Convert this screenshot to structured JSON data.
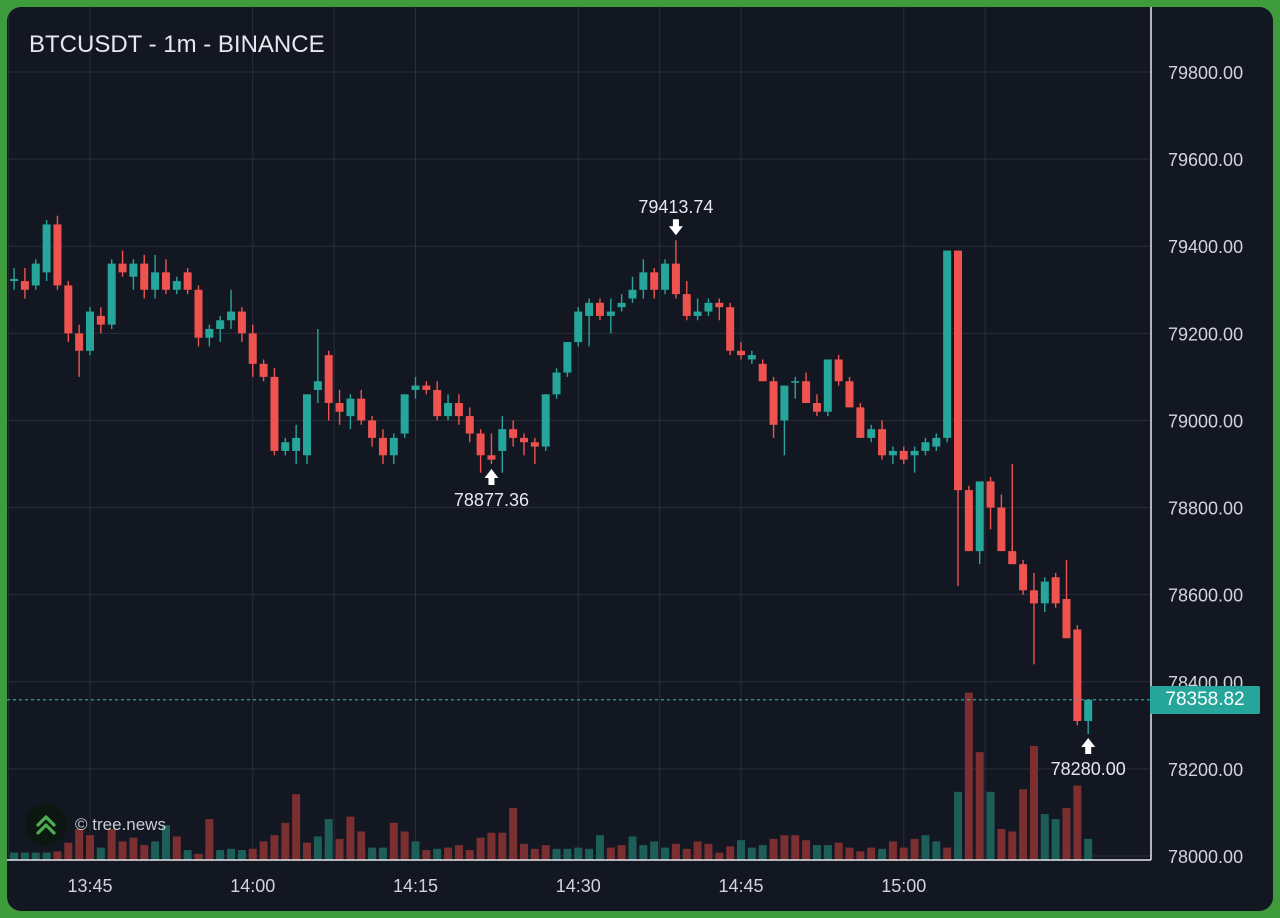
{
  "title": "BTCUSDT - 1m - BINANCE",
  "watermark": "© tree.news",
  "current_price": "78358.82",
  "annotations": {
    "high_label": "79413.74",
    "low_left_label": "78877.36",
    "low_right_label": "78280.00"
  },
  "colors": {
    "up": "#26a69a",
    "down": "#ef5350",
    "background": "#131722",
    "grid": "#2a2e39",
    "frame": "#3f9c3c"
  },
  "chart_data": {
    "type": "candlestick",
    "title": "BTCUSDT - 1m - BINANCE",
    "interval_minutes": 1,
    "start_time": "13:45",
    "first_candle_index": -7,
    "y_range": [
      78000,
      79940
    ],
    "y_ticks": [
      "79800.00",
      "79600.00",
      "79400.00",
      "79200.00",
      "79000.00",
      "78800.00",
      "78600.00",
      "78400.00",
      "78200.00",
      "78000.00"
    ],
    "x_ticks": [
      "13:45",
      "14:00",
      "14:15",
      "14:30",
      "14:45",
      "15:00"
    ],
    "grid": true,
    "last_price": 78358.82,
    "candles": [
      [
        79320,
        79350,
        79300,
        79325
      ],
      [
        79320,
        79350,
        79280,
        79300
      ],
      [
        79310,
        79370,
        79300,
        79360
      ],
      [
        79340,
        79460,
        79320,
        79450
      ],
      [
        79450,
        79470,
        79300,
        79310
      ],
      [
        79310,
        79320,
        79180,
        79200
      ],
      [
        79200,
        79220,
        79100,
        79160
      ],
      [
        79160,
        79260,
        79150,
        79250
      ],
      [
        79240,
        79260,
        79200,
        79220
      ],
      [
        79220,
        79370,
        79210,
        79360
      ],
      [
        79360,
        79390,
        79330,
        79340
      ],
      [
        79330,
        79370,
        79300,
        79360
      ],
      [
        79360,
        79380,
        79280,
        79300
      ],
      [
        79300,
        79380,
        79280,
        79340
      ],
      [
        79340,
        79370,
        79290,
        79300
      ],
      [
        79300,
        79330,
        79290,
        79320
      ],
      [
        79340,
        79350,
        79290,
        79300
      ],
      [
        79300,
        79310,
        79170,
        79190
      ],
      [
        79190,
        79220,
        79170,
        79210
      ],
      [
        79210,
        79240,
        79180,
        79230
      ],
      [
        79230,
        79300,
        79210,
        79250
      ],
      [
        79250,
        79260,
        79180,
        79200
      ],
      [
        79200,
        79220,
        79100,
        79130
      ],
      [
        79130,
        79140,
        79090,
        79100
      ],
      [
        79100,
        79120,
        78920,
        78930
      ],
      [
        78930,
        78960,
        78920,
        78950
      ],
      [
        78930,
        78990,
        78900,
        78960
      ],
      [
        78920,
        79060,
        78900,
        79060
      ],
      [
        79070,
        79210,
        79040,
        79090
      ],
      [
        79150,
        79160,
        79000,
        79040
      ],
      [
        79040,
        79070,
        78990,
        79020
      ],
      [
        79010,
        79060,
        78980,
        79050
      ],
      [
        79050,
        79070,
        78990,
        79000
      ],
      [
        79000,
        79010,
        78940,
        78960
      ],
      [
        78960,
        78980,
        78900,
        78920
      ],
      [
        78920,
        78970,
        78900,
        78960
      ],
      [
        78970,
        79060,
        78960,
        79060
      ],
      [
        79070,
        79100,
        79050,
        79080
      ],
      [
        79080,
        79090,
        79060,
        79070
      ],
      [
        79070,
        79090,
        79000,
        79010
      ],
      [
        79010,
        79060,
        79000,
        79040
      ],
      [
        79040,
        79060,
        78990,
        79010
      ],
      [
        79010,
        79030,
        78950,
        78970
      ],
      [
        78970,
        78980,
        78880,
        78920
      ],
      [
        78920,
        78970,
        78900,
        78910
      ],
      [
        78930,
        79010,
        78880,
        78980
      ],
      [
        78980,
        79000,
        78940,
        78960
      ],
      [
        78960,
        78970,
        78920,
        78950
      ],
      [
        78950,
        78960,
        78900,
        78940
      ],
      [
        78940,
        79060,
        78930,
        79060
      ],
      [
        79060,
        79120,
        79050,
        79110
      ],
      [
        79110,
        79180,
        79100,
        79180
      ],
      [
        79180,
        79260,
        79170,
        79250
      ],
      [
        79240,
        79280,
        79170,
        79270
      ],
      [
        79270,
        79280,
        79230,
        79240
      ],
      [
        79240,
        79280,
        79200,
        79250
      ],
      [
        79260,
        79290,
        79250,
        79270
      ],
      [
        79280,
        79330,
        79270,
        79300
      ],
      [
        79300,
        79370,
        79280,
        79340
      ],
      [
        79340,
        79350,
        79280,
        79300
      ],
      [
        79300,
        79370,
        79290,
        79360
      ],
      [
        79360,
        79413.74,
        79280,
        79290
      ],
      [
        79290,
        79320,
        79230,
        79240
      ],
      [
        79240,
        79280,
        79230,
        79250
      ],
      [
        79250,
        79280,
        79240,
        79270
      ],
      [
        79270,
        79280,
        79230,
        79260
      ],
      [
        79260,
        79270,
        79150,
        79160
      ],
      [
        79160,
        79180,
        79140,
        79150
      ],
      [
        79140,
        79160,
        79130,
        79150
      ],
      [
        79130,
        79140,
        79090,
        79090
      ],
      [
        79090,
        79100,
        78960,
        78990
      ],
      [
        79000,
        79080,
        78920,
        79080
      ],
      [
        79090,
        79100,
        79050,
        79090
      ],
      [
        79090,
        79110,
        79040,
        79040
      ],
      [
        79040,
        79060,
        79010,
        79020
      ],
      [
        79020,
        79140,
        79010,
        79140
      ],
      [
        79140,
        79150,
        79080,
        79090
      ],
      [
        79090,
        79100,
        79030,
        79030
      ],
      [
        79030,
        79040,
        78960,
        78960
      ],
      [
        78960,
        78990,
        78950,
        78980
      ],
      [
        78980,
        79000,
        78910,
        78920
      ],
      [
        78920,
        78940,
        78900,
        78930
      ],
      [
        78930,
        78940,
        78900,
        78910
      ],
      [
        78920,
        78940,
        78880,
        78930
      ],
      [
        78930,
        78960,
        78920,
        78950
      ],
      [
        78940,
        78970,
        78930,
        78960
      ],
      [
        78960,
        79390,
        78950,
        79390
      ],
      [
        79390,
        79390,
        78620,
        78840
      ],
      [
        78840,
        78850,
        78700,
        78700
      ],
      [
        78700,
        78860,
        78670,
        78860
      ],
      [
        78860,
        78870,
        78750,
        78800
      ],
      [
        78800,
        78830,
        78700,
        78700
      ],
      [
        78700,
        78900,
        78680,
        78670
      ],
      [
        78670,
        78680,
        78600,
        78610
      ],
      [
        78610,
        78650,
        78440,
        78580
      ],
      [
        78580,
        78640,
        78560,
        78630
      ],
      [
        78640,
        78650,
        78570,
        78580
      ],
      [
        78590,
        78680,
        78500,
        78500
      ],
      [
        78520,
        78530,
        78300,
        78310
      ],
      [
        78310,
        78360,
        78280,
        78358.82
      ]
    ],
    "volumes": [
      [
        0.6,
        "up"
      ],
      [
        0.6,
        "up"
      ],
      [
        0.6,
        "up"
      ],
      [
        0.6,
        "up"
      ],
      [
        0.7,
        "down"
      ],
      [
        1.4,
        "down"
      ],
      [
        2.5,
        "down"
      ],
      [
        2.0,
        "down"
      ],
      [
        1.0,
        "up"
      ],
      [
        2.5,
        "down"
      ],
      [
        1.5,
        "down"
      ],
      [
        1.8,
        "down"
      ],
      [
        1.2,
        "down"
      ],
      [
        1.5,
        "up"
      ],
      [
        2.8,
        "up"
      ],
      [
        1.9,
        "down"
      ],
      [
        0.8,
        "up"
      ],
      [
        0.5,
        "down"
      ],
      [
        3.3,
        "down"
      ],
      [
        0.8,
        "up"
      ],
      [
        0.9,
        "up"
      ],
      [
        0.8,
        "up"
      ],
      [
        0.9,
        "down"
      ],
      [
        1.5,
        "down"
      ],
      [
        2.0,
        "down"
      ],
      [
        3.0,
        "down"
      ],
      [
        5.3,
        "down"
      ],
      [
        1.4,
        "down"
      ],
      [
        1.9,
        "up"
      ],
      [
        3.3,
        "up"
      ],
      [
        1.7,
        "down"
      ],
      [
        3.5,
        "down"
      ],
      [
        2.3,
        "down"
      ],
      [
        1.0,
        "up"
      ],
      [
        1.0,
        "up"
      ],
      [
        3.0,
        "down"
      ],
      [
        2.3,
        "down"
      ],
      [
        1.5,
        "up"
      ],
      [
        0.8,
        "down"
      ],
      [
        0.9,
        "up"
      ],
      [
        1.0,
        "down"
      ],
      [
        1.2,
        "down"
      ],
      [
        0.8,
        "down"
      ],
      [
        1.8,
        "down"
      ],
      [
        2.2,
        "down"
      ],
      [
        2.2,
        "down"
      ],
      [
        4.2,
        "down"
      ],
      [
        1.3,
        "down"
      ],
      [
        0.9,
        "down"
      ],
      [
        1.2,
        "down"
      ],
      [
        0.9,
        "up"
      ],
      [
        0.9,
        "up"
      ],
      [
        1.0,
        "up"
      ],
      [
        0.9,
        "up"
      ],
      [
        2.0,
        "up"
      ],
      [
        1.0,
        "down"
      ],
      [
        1.2,
        "down"
      ],
      [
        1.9,
        "up"
      ],
      [
        1.2,
        "up"
      ],
      [
        1.5,
        "up"
      ],
      [
        1.0,
        "up"
      ],
      [
        1.3,
        "down"
      ],
      [
        0.9,
        "down"
      ],
      [
        1.5,
        "down"
      ],
      [
        1.3,
        "down"
      ],
      [
        0.6,
        "down"
      ],
      [
        1.1,
        "down"
      ],
      [
        1.6,
        "up"
      ],
      [
        1.0,
        "up"
      ],
      [
        1.2,
        "up"
      ],
      [
        1.7,
        "down"
      ],
      [
        2.0,
        "down"
      ],
      [
        2.0,
        "down"
      ],
      [
        1.6,
        "down"
      ],
      [
        1.2,
        "up"
      ],
      [
        1.2,
        "up"
      ],
      [
        1.4,
        "down"
      ],
      [
        1.0,
        "down"
      ],
      [
        0.7,
        "down"
      ],
      [
        1.0,
        "down"
      ],
      [
        0.9,
        "up"
      ],
      [
        1.5,
        "down"
      ],
      [
        1.0,
        "down"
      ],
      [
        1.7,
        "down"
      ],
      [
        2.0,
        "up"
      ],
      [
        1.5,
        "up"
      ],
      [
        1.0,
        "down"
      ],
      [
        5.5,
        "up"
      ],
      [
        13.5,
        "down"
      ],
      [
        8.7,
        "down"
      ],
      [
        5.5,
        "up"
      ],
      [
        2.5,
        "down"
      ],
      [
        2.3,
        "down"
      ],
      [
        5.7,
        "down"
      ],
      [
        9.2,
        "down"
      ],
      [
        3.7,
        "up"
      ],
      [
        3.3,
        "up"
      ],
      [
        4.2,
        "down"
      ],
      [
        6.0,
        "down"
      ],
      [
        1.7,
        "up"
      ]
    ]
  }
}
